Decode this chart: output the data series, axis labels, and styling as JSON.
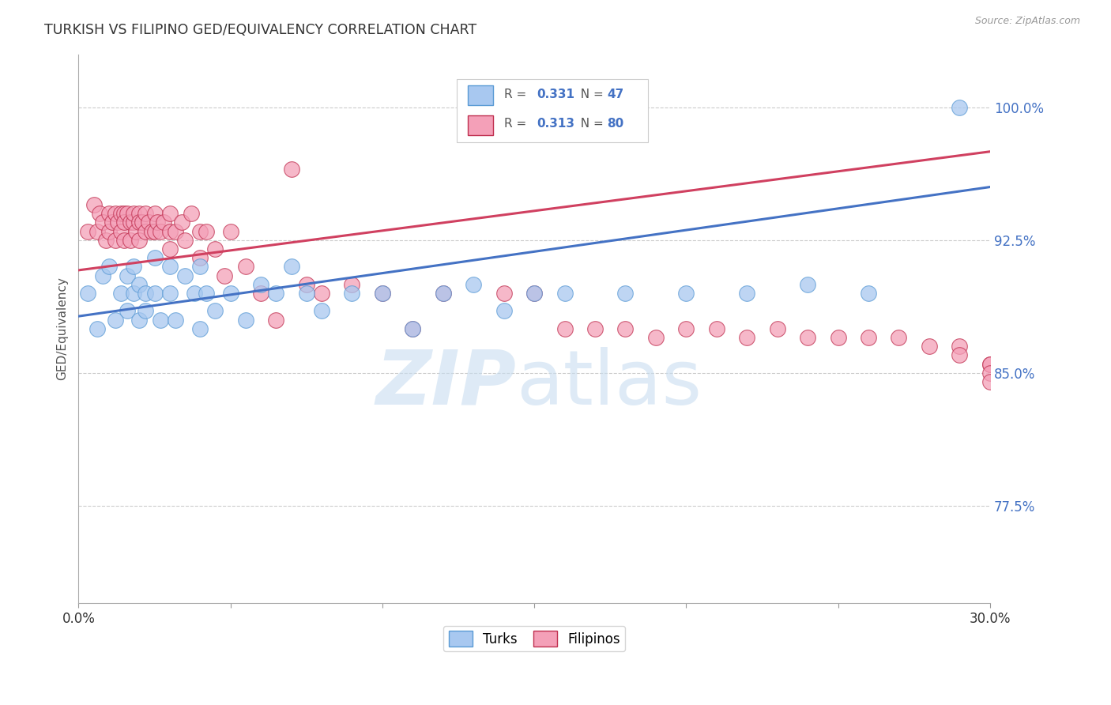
{
  "title": "TURKISH VS FILIPINO GED/EQUIVALENCY CORRELATION CHART",
  "source": "Source: ZipAtlas.com",
  "ylabel": "GED/Equivalency",
  "yticks": [
    "77.5%",
    "85.0%",
    "92.5%",
    "100.0%"
  ],
  "ytick_vals": [
    0.775,
    0.85,
    0.925,
    1.0
  ],
  "xlim": [
    0.0,
    0.3
  ],
  "ylim": [
    0.72,
    1.03
  ],
  "turks_color": "#A8C8F0",
  "filipinos_color": "#F4A0B8",
  "line_turks_color": "#4472C4",
  "line_filipinos_color": "#D04060",
  "turks_edge_color": "#5B9BD5",
  "filipinos_edge_color": "#C03050",
  "turks_R": "0.331",
  "turks_N": "47",
  "filipinos_R": "0.313",
  "filipinos_N": "80",
  "turks_x": [
    0.003,
    0.006,
    0.008,
    0.01,
    0.012,
    0.014,
    0.016,
    0.016,
    0.018,
    0.018,
    0.02,
    0.02,
    0.022,
    0.022,
    0.025,
    0.025,
    0.027,
    0.03,
    0.03,
    0.032,
    0.035,
    0.038,
    0.04,
    0.04,
    0.042,
    0.045,
    0.05,
    0.055,
    0.06,
    0.065,
    0.07,
    0.075,
    0.08,
    0.09,
    0.1,
    0.11,
    0.12,
    0.13,
    0.14,
    0.15,
    0.16,
    0.18,
    0.2,
    0.22,
    0.24,
    0.26,
    0.29
  ],
  "turks_y": [
    0.895,
    0.875,
    0.905,
    0.91,
    0.88,
    0.895,
    0.905,
    0.885,
    0.91,
    0.895,
    0.88,
    0.9,
    0.895,
    0.885,
    0.915,
    0.895,
    0.88,
    0.895,
    0.91,
    0.88,
    0.905,
    0.895,
    0.91,
    0.875,
    0.895,
    0.885,
    0.895,
    0.88,
    0.9,
    0.895,
    0.91,
    0.895,
    0.885,
    0.895,
    0.895,
    0.875,
    0.895,
    0.9,
    0.885,
    0.895,
    0.895,
    0.895,
    0.895,
    0.895,
    0.9,
    0.895,
    1.0
  ],
  "filipinos_x": [
    0.003,
    0.005,
    0.006,
    0.007,
    0.008,
    0.009,
    0.01,
    0.01,
    0.011,
    0.012,
    0.012,
    0.013,
    0.014,
    0.014,
    0.015,
    0.015,
    0.015,
    0.016,
    0.017,
    0.017,
    0.018,
    0.018,
    0.019,
    0.02,
    0.02,
    0.02,
    0.021,
    0.022,
    0.022,
    0.023,
    0.024,
    0.025,
    0.025,
    0.026,
    0.027,
    0.028,
    0.03,
    0.03,
    0.03,
    0.032,
    0.034,
    0.035,
    0.037,
    0.04,
    0.04,
    0.042,
    0.045,
    0.048,
    0.05,
    0.055,
    0.06,
    0.065,
    0.07,
    0.075,
    0.08,
    0.09,
    0.1,
    0.11,
    0.12,
    0.14,
    0.15,
    0.16,
    0.17,
    0.18,
    0.19,
    0.2,
    0.21,
    0.22,
    0.23,
    0.24,
    0.25,
    0.26,
    0.27,
    0.28,
    0.29,
    0.29,
    0.3,
    0.3,
    0.3,
    0.3
  ],
  "filipinos_y": [
    0.93,
    0.945,
    0.93,
    0.94,
    0.935,
    0.925,
    0.94,
    0.93,
    0.935,
    0.94,
    0.925,
    0.935,
    0.94,
    0.93,
    0.94,
    0.935,
    0.925,
    0.94,
    0.935,
    0.925,
    0.935,
    0.94,
    0.93,
    0.94,
    0.935,
    0.925,
    0.935,
    0.94,
    0.93,
    0.935,
    0.93,
    0.94,
    0.93,
    0.935,
    0.93,
    0.935,
    0.94,
    0.93,
    0.92,
    0.93,
    0.935,
    0.925,
    0.94,
    0.93,
    0.915,
    0.93,
    0.92,
    0.905,
    0.93,
    0.91,
    0.895,
    0.88,
    0.965,
    0.9,
    0.895,
    0.9,
    0.895,
    0.875,
    0.895,
    0.895,
    0.895,
    0.875,
    0.875,
    0.875,
    0.87,
    0.875,
    0.875,
    0.87,
    0.875,
    0.87,
    0.87,
    0.87,
    0.87,
    0.865,
    0.865,
    0.86,
    0.855,
    0.855,
    0.85,
    0.845
  ]
}
